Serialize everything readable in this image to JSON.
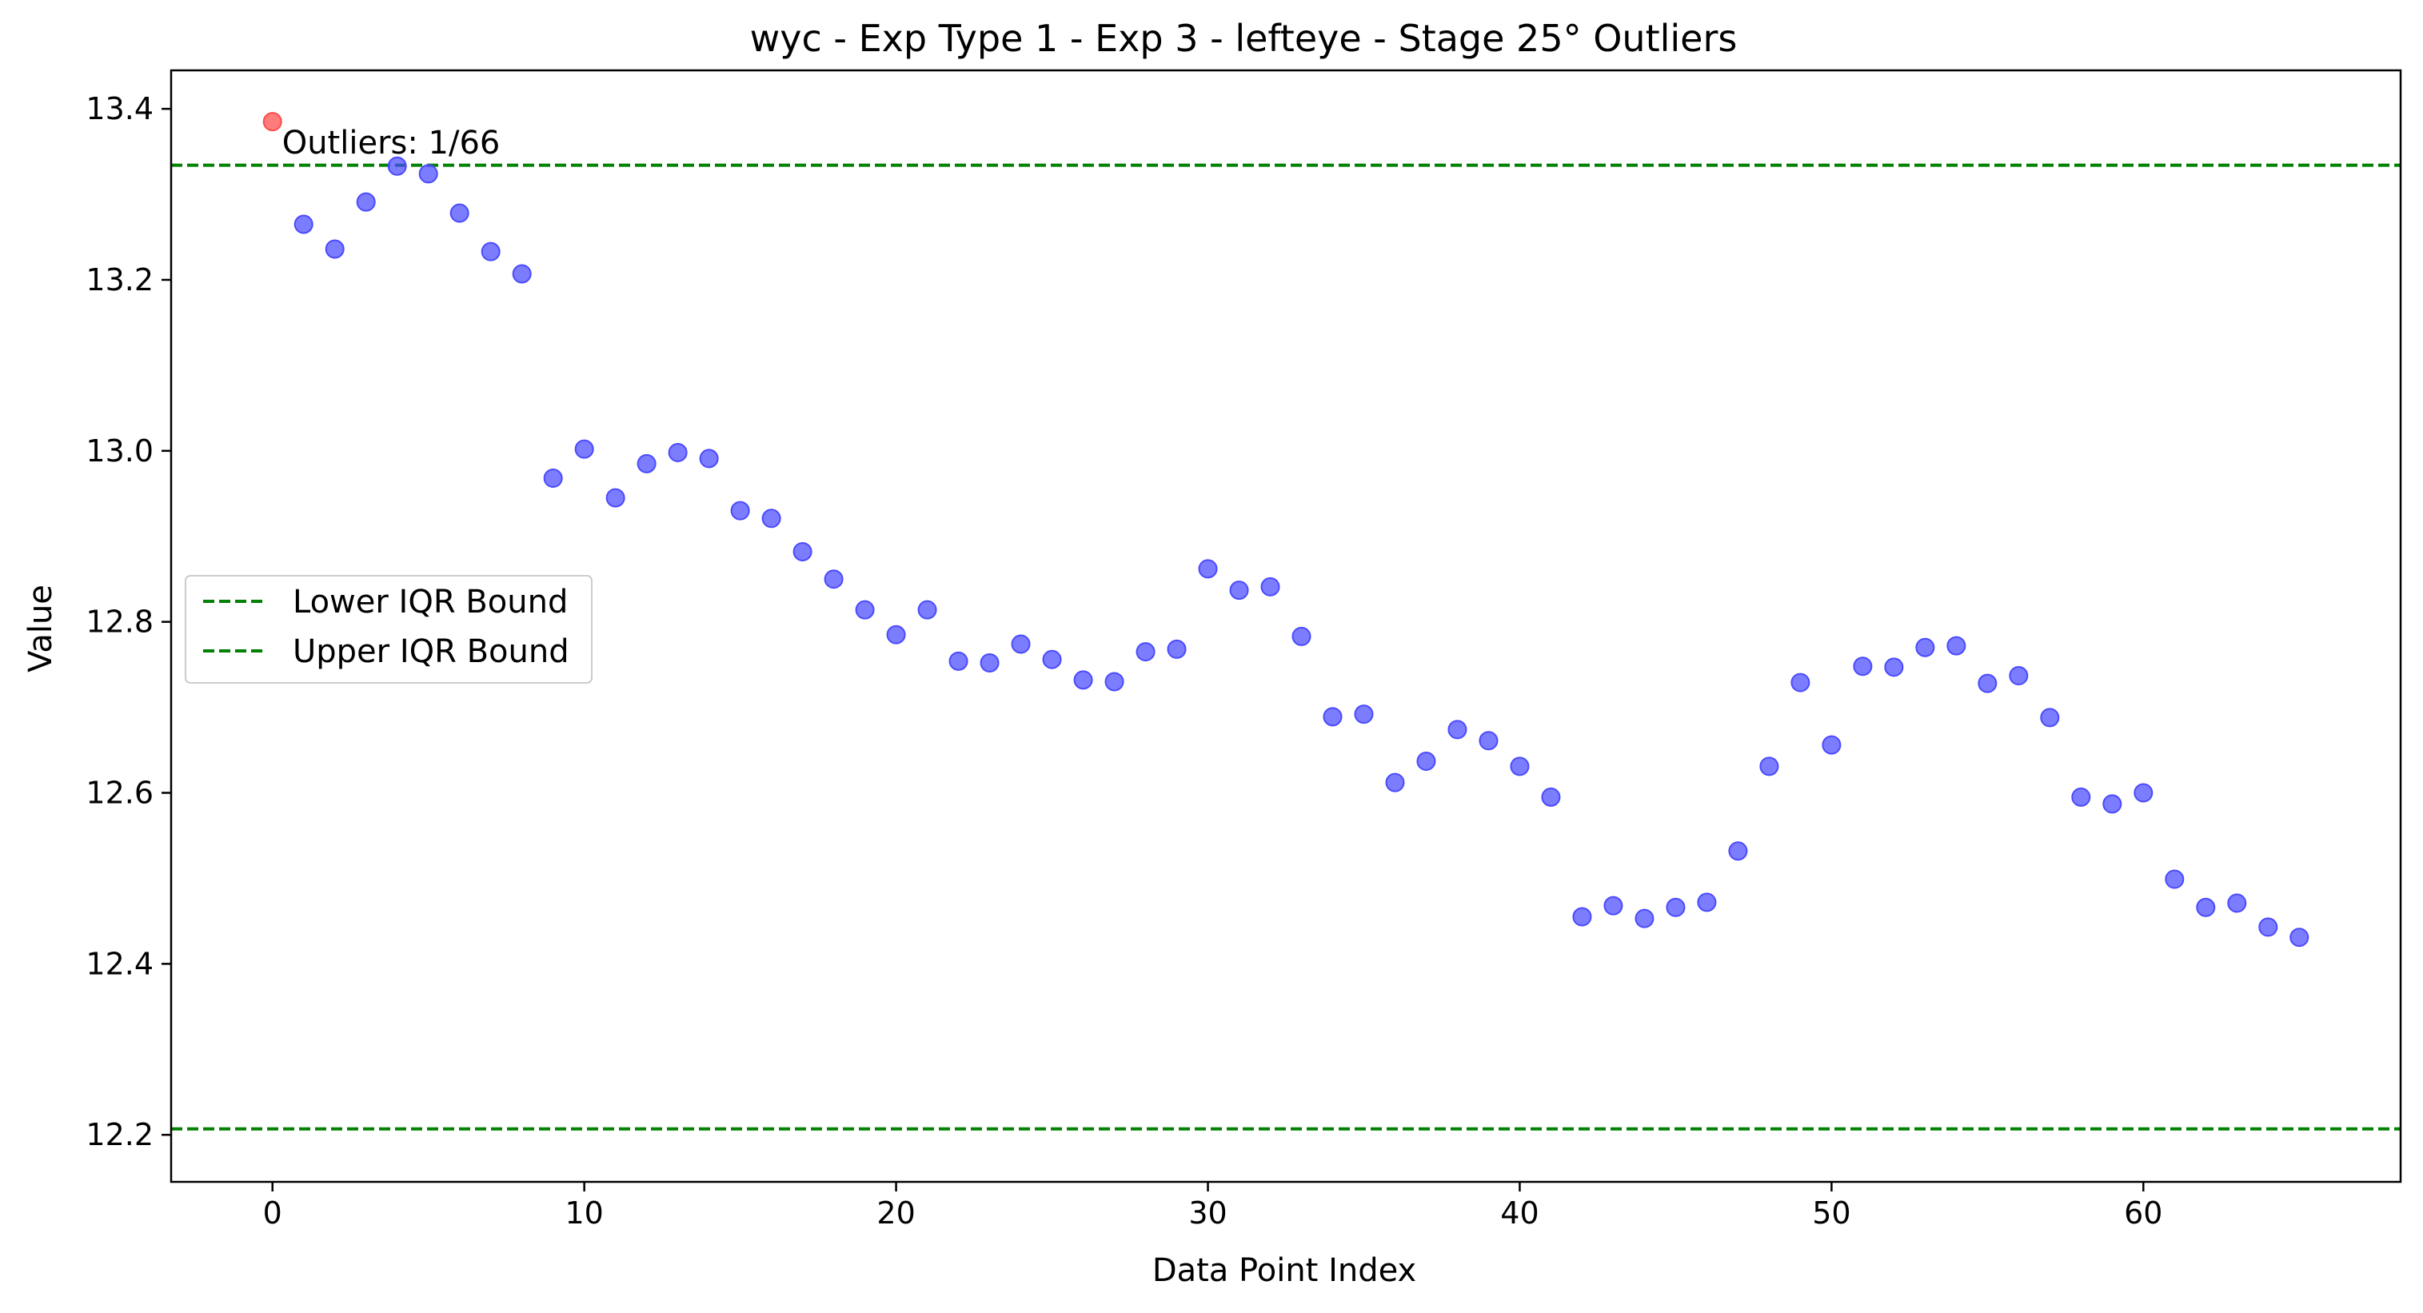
{
  "chart_data": {
    "type": "scatter",
    "title": "wyc - Exp Type 1 - Exp 3 - lefteye - Stage 25° Outliers",
    "xlabel": "Data Point Index",
    "ylabel": "Value",
    "xlim": [
      -3.25,
      68.25
    ],
    "ylim": [
      12.145,
      13.445
    ],
    "xticks": [
      0,
      10,
      20,
      30,
      40,
      50,
      60
    ],
    "yticks": [
      12.2,
      12.4,
      12.6,
      12.8,
      13.0,
      13.2,
      13.4
    ],
    "xtick_labels": [
      "0",
      "10",
      "20",
      "30",
      "40",
      "50",
      "60"
    ],
    "ytick_labels": [
      "12.2",
      "12.4",
      "12.6",
      "12.8",
      "13.0",
      "13.2",
      "13.4"
    ],
    "grid": false,
    "legend_position": "center-left",
    "reference_lines": [
      {
        "name": "Lower IQR Bound",
        "y": 12.207,
        "color": "#008000",
        "style": "dashed"
      },
      {
        "name": "Upper IQR Bound",
        "y": 13.334,
        "color": "#008000",
        "style": "dashed"
      }
    ],
    "annotation": "Outliers: 1/66",
    "series": [
      {
        "role": "inliers",
        "color": "#4a4aff",
        "x": [
          1,
          2,
          3,
          4,
          5,
          6,
          7,
          8,
          9,
          10,
          11,
          12,
          13,
          14,
          15,
          16,
          17,
          18,
          19,
          20,
          21,
          22,
          23,
          24,
          25,
          26,
          27,
          28,
          29,
          30,
          31,
          32,
          33,
          34,
          35,
          36,
          37,
          38,
          39,
          40,
          41,
          42,
          43,
          44,
          45,
          46,
          47,
          48,
          49,
          50,
          51,
          52,
          53,
          54,
          55,
          56,
          57,
          58,
          59,
          60,
          61,
          62,
          63,
          64,
          65
        ],
        "y": [
          13.265,
          13.236,
          13.291,
          13.333,
          13.324,
          13.278,
          13.233,
          13.207,
          12.968,
          13.002,
          12.945,
          12.985,
          12.998,
          12.991,
          12.93,
          12.921,
          12.882,
          12.85,
          12.814,
          12.785,
          12.814,
          12.754,
          12.752,
          12.774,
          12.756,
          12.732,
          12.73,
          12.765,
          12.768,
          12.862,
          12.837,
          12.841,
          12.783,
          12.689,
          12.692,
          12.612,
          12.637,
          12.674,
          12.661,
          12.631,
          12.595,
          12.455,
          12.468,
          12.453,
          12.466,
          12.472,
          12.532,
          12.631,
          12.729,
          12.656,
          12.748,
          12.747,
          12.77,
          12.772,
          12.728,
          12.737,
          12.688,
          12.595,
          12.587,
          12.6,
          12.499,
          12.466,
          12.471,
          12.443,
          12.431
        ]
      },
      {
        "role": "outliers",
        "color": "#ff4a4a",
        "x": [
          0
        ],
        "y": [
          13.385
        ]
      }
    ]
  }
}
